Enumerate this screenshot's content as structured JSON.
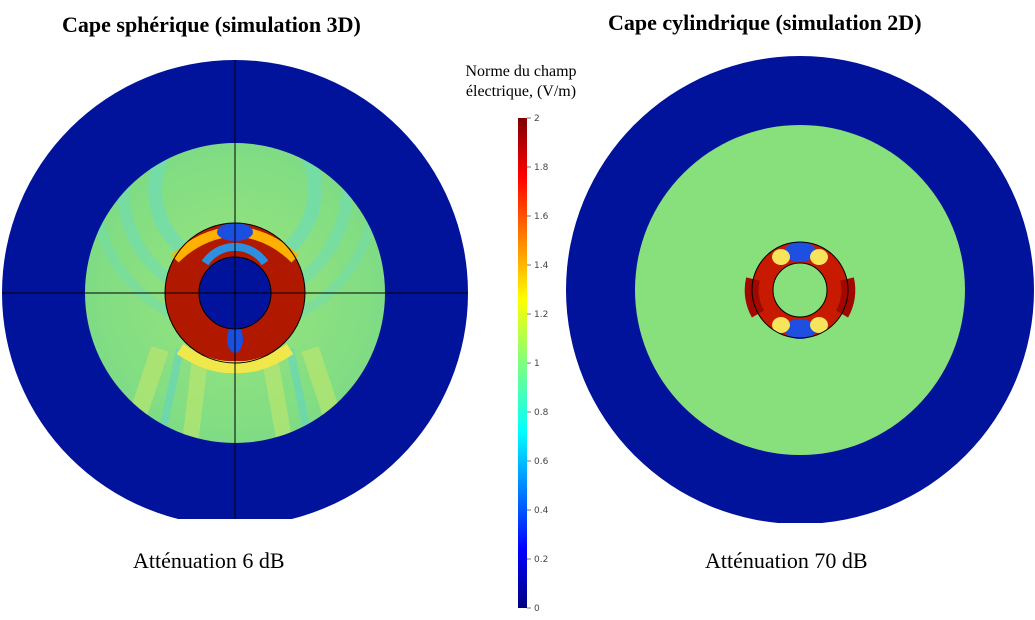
{
  "left_panel": {
    "title": "Cape sphérique (simulation 3D)",
    "caption": "Atténuation 6 dB"
  },
  "right_panel": {
    "title": "Cape cylindrique (simulation 2D)",
    "caption": "Atténuation 70 dB"
  },
  "colorbar": {
    "title_line1": "Norme du champ",
    "title_line2": "électrique, (V/m)",
    "min": 0,
    "max": 2,
    "ticks": [
      "2",
      "1.8",
      "1.6",
      "1.4",
      "1.2",
      "1",
      "0.8",
      "0.6",
      "0.4",
      "0.2",
      "0"
    ],
    "colormap": "jet"
  },
  "colors": {
    "outer_ring": "#001a8f",
    "background_field": "#8ee27a",
    "field_cyan": "#5fd8c0",
    "field_red": "#a81200",
    "field_blue": "#1a3fd0"
  }
}
